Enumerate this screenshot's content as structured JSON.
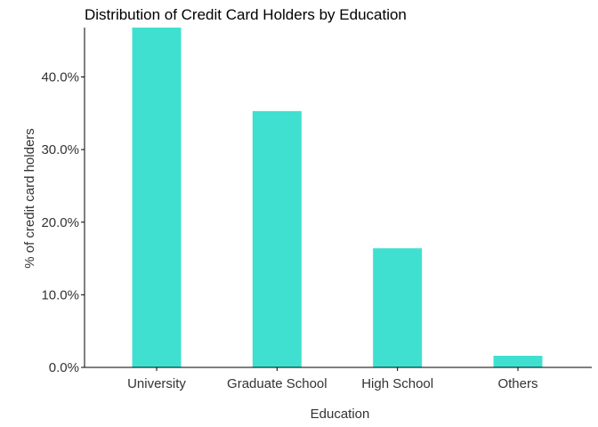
{
  "chart_data": {
    "type": "bar",
    "title": "Distribution of Credit Card Holders by Education",
    "xlabel": "Education",
    "ylabel": "% of credit card holders",
    "categories": [
      "University",
      "Graduate School",
      "High School",
      "Others"
    ],
    "values": [
      46.8,
      35.3,
      16.4,
      1.6
    ],
    "ylim": [
      0,
      46.8
    ],
    "yticks": [
      0,
      10,
      20,
      30,
      40
    ],
    "ytick_labels": [
      "0.0%",
      "10.0%",
      "20.0%",
      "30.0%",
      "40.0%"
    ],
    "bar_color": "#40E0D0",
    "axis_color": "#000000",
    "text_color": "#333333",
    "grid": false,
    "legend": "none"
  }
}
